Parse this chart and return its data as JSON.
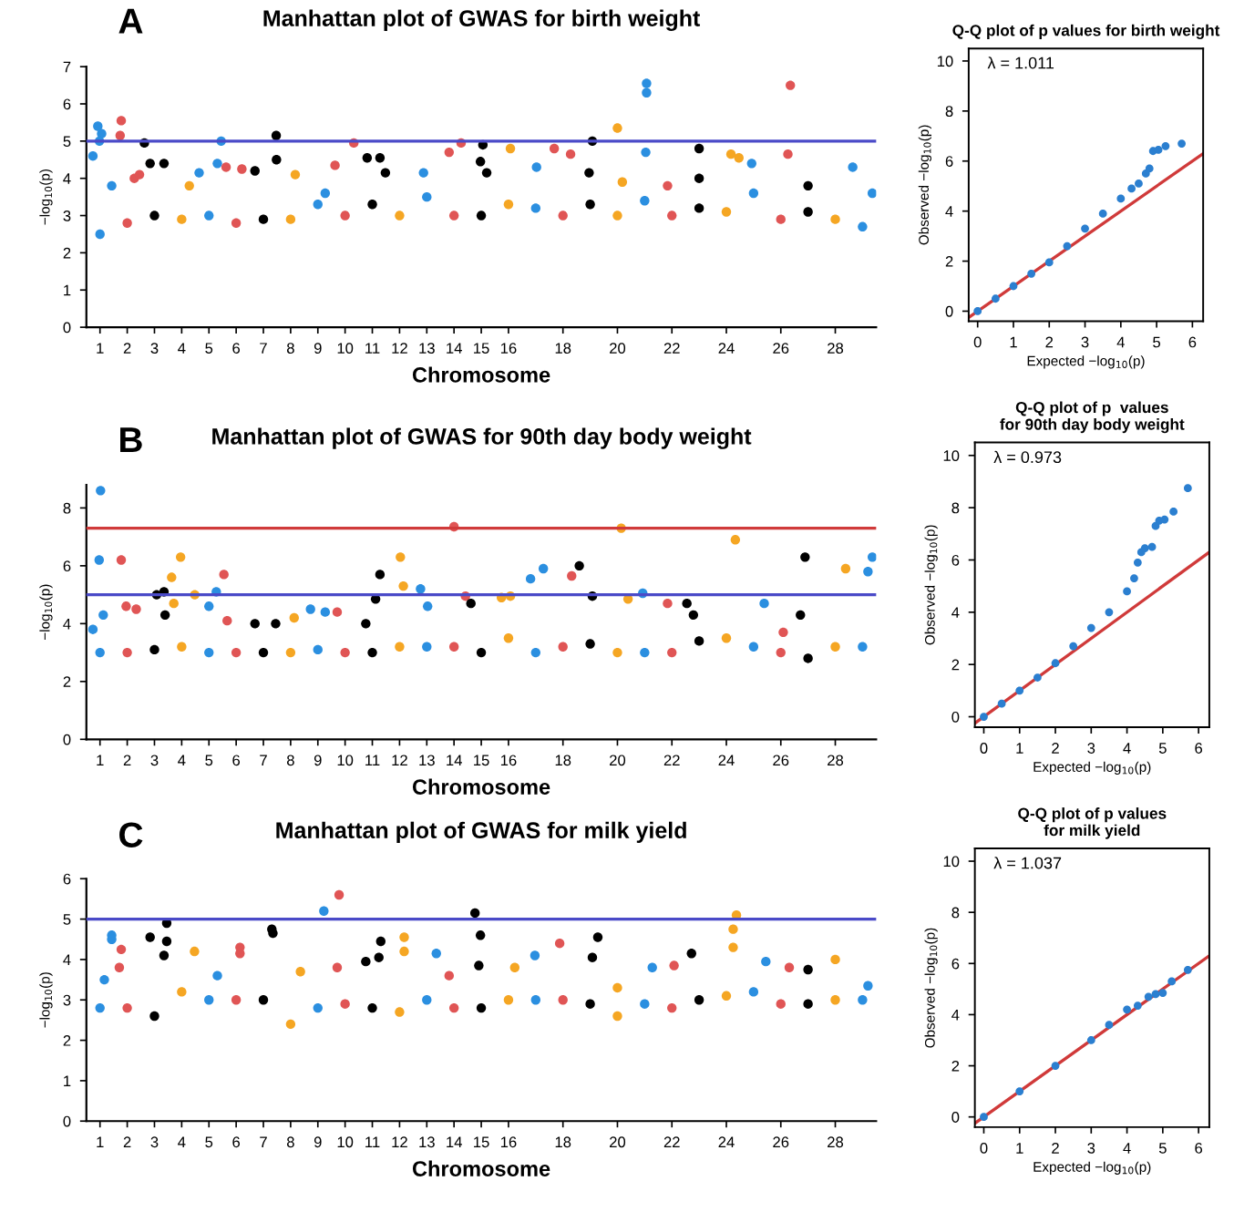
{
  "chart_data": [
    {
      "type": "scatter",
      "title": "Manhattan plot of GWAS for birth weight",
      "xlabel": "Chromosome",
      "ylabel": "−log$_{10}$(p)",
      "annotations": [
        "A"
      ],
      "xlim": [
        0.5,
        29.5
      ],
      "ylim": [
        0,
        7
      ],
      "yticks": [
        0,
        1,
        2,
        3,
        4,
        5,
        6,
        7
      ],
      "xticks": [
        1,
        2,
        3,
        4,
        5,
        6,
        7,
        8,
        9,
        10,
        11,
        12,
        13,
        14,
        15,
        16,
        18,
        20,
        22,
        24,
        26,
        28
      ],
      "marker": "circle",
      "grid": false,
      "ref_lines": [
        {
          "axis": "y",
          "value": 5,
          "color": "#4a4ac8"
        }
      ],
      "series": [
        {
          "color": "#2b8fe0",
          "x": [
            1.0,
            0.74,
            0.92,
            1.06,
            0.98,
            1.43,
            5.0,
            4.64,
            5.31,
            5.45,
            9.0,
            9.27,
            13.0,
            12.88,
            17.0,
            17.03,
            21.0,
            21.07,
            21.07,
            21.04,
            25.0,
            24.93,
            29.0,
            28.64,
            29.36
          ],
          "values": [
            2.5,
            4.6,
            5.4,
            5.2,
            5.0,
            3.8,
            3.0,
            4.15,
            4.4,
            5.0,
            3.3,
            3.6,
            3.5,
            4.15,
            3.2,
            4.3,
            3.4,
            6.55,
            6.3,
            4.7,
            3.6,
            4.4,
            2.7,
            4.3,
            3.6
          ]
        },
        {
          "color": "#e05555",
          "x": [
            2.0,
            1.74,
            1.78,
            2.26,
            2.45,
            6.0,
            6.21,
            5.63,
            10.0,
            10.32,
            9.63,
            14.0,
            14.26,
            13.82,
            18.0,
            17.68,
            18.28,
            22.0,
            21.84,
            26.0,
            26.35,
            26.26
          ],
          "values": [
            2.8,
            5.15,
            5.55,
            4.0,
            4.1,
            2.8,
            4.25,
            4.3,
            3.0,
            4.95,
            4.35,
            3.0,
            4.95,
            4.7,
            3.0,
            4.8,
            4.65,
            3.0,
            3.8,
            2.9,
            6.5,
            4.65
          ]
        },
        {
          "color": "#000000",
          "x": [
            3.0,
            2.63,
            2.84,
            3.35,
            7.0,
            7.47,
            7.48,
            6.69,
            11.0,
            10.81,
            11.28,
            11.48,
            15.0,
            15.06,
            14.97,
            15.2,
            19.0,
            19.08,
            18.96,
            23.0,
            23.0,
            23.0,
            27.0,
            27.0
          ],
          "values": [
            3.0,
            4.95,
            4.4,
            4.4,
            2.9,
            5.15,
            4.5,
            4.2,
            3.3,
            4.55,
            4.55,
            4.15,
            3.0,
            4.9,
            4.45,
            4.15,
            3.3,
            5.0,
            4.15,
            3.2,
            4.8,
            4.0,
            3.1,
            3.8
          ]
        },
        {
          "color": "#f5a623",
          "x": [
            4.0,
            4.28,
            8.0,
            8.17,
            12.0,
            16.0,
            16.07,
            20.0,
            20.0,
            20.18,
            24.0,
            24.17,
            24.46,
            28.0
          ],
          "values": [
            2.9,
            3.8,
            2.9,
            4.1,
            3.0,
            3.3,
            4.8,
            3.0,
            5.35,
            3.9,
            3.1,
            4.65,
            4.55,
            2.9
          ]
        }
      ]
    },
    {
      "type": "scatter",
      "title": "Q-Q plot of p values for birth weight",
      "xlabel": "Expected −log$_{10}$(p)",
      "ylabel": "Observed −log$_{10}$(p)",
      "annotations": [
        "λ = 1.011"
      ],
      "xlim": [
        -0.25,
        6.3
      ],
      "ylim": [
        -0.4,
        10.5
      ],
      "xticks": [
        0,
        1,
        2,
        3,
        4,
        5,
        6
      ],
      "yticks": [
        0,
        2,
        4,
        6,
        8,
        10
      ],
      "marker": "circle",
      "grid": false,
      "series": [
        {
          "color": "#2b7fd0",
          "x": [
            0,
            0.5,
            1,
            1.5,
            2,
            2.5,
            3,
            3.5,
            4,
            4.3,
            4.5,
            4.7,
            4.8,
            4.9,
            5.05,
            5.25,
            5.7
          ],
          "values": [
            0,
            0.5,
            1,
            1.5,
            1.95,
            2.6,
            3.3,
            3.9,
            4.5,
            4.9,
            5.1,
            5.5,
            5.7,
            6.4,
            6.45,
            6.6,
            6.7
          ]
        },
        {
          "type": "line",
          "color": "#d03a3a",
          "marker": "none",
          "x": [
            -0.25,
            6.3
          ],
          "values": [
            -0.25,
            6.3
          ]
        }
      ]
    },
    {
      "type": "scatter",
      "title": "Manhattan plot of GWAS for 90th day body weight",
      "xlabel": "Chromosome",
      "ylabel": "−log$_{10}$(p)",
      "annotations": [
        "B"
      ],
      "xlim": [
        0.5,
        29.5
      ],
      "ylim": [
        0,
        8.8
      ],
      "yticks": [
        0,
        2,
        4,
        6,
        8
      ],
      "xticks": [
        1,
        2,
        3,
        4,
        5,
        6,
        7,
        8,
        9,
        10,
        11,
        12,
        13,
        14,
        15,
        16,
        18,
        20,
        22,
        24,
        26,
        28
      ],
      "marker": "circle",
      "grid": false,
      "ref_lines": [
        {
          "axis": "y",
          "value": 7.3,
          "color": "#d03a3a"
        },
        {
          "axis": "y",
          "value": 5,
          "color": "#4a4ac8"
        }
      ],
      "series": [
        {
          "color": "#2b8fe0",
          "x": [
            1.0,
            1.02,
            0.97,
            1.12,
            0.74,
            5.0,
            5.27,
            5.0,
            9.0,
            8.73,
            9.27,
            13.0,
            12.77,
            13.03,
            17.0,
            16.81,
            17.28,
            21.0,
            20.93,
            25.0,
            25.39,
            29.0,
            29.36,
            29.2
          ],
          "values": [
            3.0,
            8.6,
            6.2,
            4.3,
            3.8,
            3.0,
            5.1,
            4.6,
            3.1,
            4.5,
            4.4,
            3.2,
            5.2,
            4.6,
            3.0,
            5.55,
            5.9,
            3.0,
            5.05,
            3.2,
            4.7,
            3.2,
            6.3,
            5.8
          ]
        },
        {
          "color": "#e05555",
          "x": [
            2.0,
            1.78,
            1.96,
            2.33,
            6.0,
            5.55,
            5.67,
            10.0,
            9.71,
            14.0,
            14.0,
            14.42,
            18.0,
            18.32,
            22.0,
            21.84,
            26.0,
            26.09
          ],
          "values": [
            3.0,
            6.2,
            4.6,
            4.5,
            3.0,
            5.7,
            4.1,
            3.0,
            4.4,
            3.2,
            7.35,
            4.95,
            3.2,
            5.65,
            3.0,
            4.7,
            3.0,
            3.7
          ]
        },
        {
          "color": "#000000",
          "x": [
            3.0,
            3.08,
            3.35,
            3.39,
            7.0,
            6.69,
            7.45,
            11.0,
            11.28,
            11.12,
            10.76,
            15.0,
            14.62,
            19.0,
            18.6,
            19.08,
            23.0,
            22.55,
            22.79,
            27.0,
            26.89,
            26.72
          ],
          "values": [
            3.1,
            5.0,
            5.1,
            4.3,
            3.0,
            4.0,
            4.0,
            3.0,
            5.7,
            4.85,
            4.0,
            3.0,
            4.7,
            3.3,
            6.0,
            4.95,
            3.4,
            4.7,
            4.3,
            2.8,
            6.3,
            4.3
          ]
        },
        {
          "color": "#f5a623",
          "x": [
            4.0,
            3.96,
            3.63,
            3.71,
            4.48,
            8.0,
            8.13,
            12.0,
            12.03,
            12.14,
            16.0,
            16.07,
            15.74,
            20.0,
            20.14,
            20.39,
            24.0,
            24.33,
            28.0,
            28.38
          ],
          "values": [
            3.2,
            6.3,
            5.6,
            4.7,
            5.0,
            3.0,
            4.2,
            3.2,
            6.3,
            5.3,
            3.5,
            4.95,
            4.9,
            3.0,
            7.3,
            4.85,
            3.5,
            6.9,
            3.2,
            5.9
          ]
        }
      ]
    },
    {
      "type": "scatter",
      "title": "Q-Q plot of p  values\nfor 90th day body weight",
      "xlabel": "Expected −log$_{10}$(p)",
      "ylabel": "Observed −log$_{10}$(p)",
      "annotations": [
        "λ = 0.973"
      ],
      "xlim": [
        -0.25,
        6.3
      ],
      "ylim": [
        -0.4,
        10.5
      ],
      "xticks": [
        0,
        1,
        2,
        3,
        4,
        5,
        6
      ],
      "yticks": [
        0,
        2,
        4,
        6,
        8,
        10
      ],
      "marker": "circle",
      "grid": false,
      "series": [
        {
          "color": "#2b7fd0",
          "x": [
            0,
            0.5,
            1,
            1.5,
            2,
            2.5,
            3,
            3.5,
            4,
            4.2,
            4.3,
            4.4,
            4.5,
            4.7,
            4.8,
            4.9,
            5.05,
            5.3,
            5.7
          ],
          "values": [
            0,
            0.5,
            1,
            1.5,
            2.05,
            2.7,
            3.4,
            4.0,
            4.8,
            5.3,
            5.9,
            6.3,
            6.45,
            6.5,
            7.3,
            7.5,
            7.55,
            7.85,
            8.75
          ]
        },
        {
          "type": "line",
          "color": "#d03a3a",
          "marker": "none",
          "x": [
            -0.25,
            6.3
          ],
          "values": [
            -0.25,
            6.3
          ]
        }
      ]
    },
    {
      "type": "scatter",
      "title": "Manhattan plot of GWAS for milk yield",
      "xlabel": "Chromosome",
      "ylabel": "−log$_{10}$(p)",
      "annotations": [
        "C"
      ],
      "xlim": [
        0.5,
        29.5
      ],
      "ylim": [
        0,
        6
      ],
      "yticks": [
        0,
        1,
        2,
        3,
        4,
        5,
        6
      ],
      "xticks": [
        1,
        2,
        3,
        4,
        5,
        6,
        7,
        8,
        9,
        10,
        11,
        12,
        13,
        14,
        15,
        16,
        18,
        20,
        22,
        24,
        26,
        28
      ],
      "marker": "circle",
      "grid": false,
      "ref_lines": [
        {
          "axis": "y",
          "value": 5,
          "color": "#4a4ac8"
        }
      ],
      "series": [
        {
          "color": "#2b8fe0",
          "x": [
            1.0,
            1.16,
            1.43,
            1.43,
            5.0,
            5.31,
            9.0,
            9.22,
            13.0,
            13.35,
            17.0,
            16.97,
            21.0,
            21.28,
            25.0,
            25.45,
            29.0,
            29.2
          ],
          "values": [
            2.8,
            3.5,
            4.6,
            4.5,
            3.0,
            3.6,
            2.8,
            5.2,
            3.0,
            4.15,
            3.0,
            4.1,
            2.9,
            3.8,
            3.2,
            3.95,
            3.0,
            3.35
          ]
        },
        {
          "color": "#e05555",
          "x": [
            2.0,
            1.78,
            1.71,
            6.0,
            6.14,
            6.14,
            10.0,
            9.78,
            9.71,
            14.0,
            13.82,
            18.0,
            17.88,
            22.0,
            22.08,
            26.0,
            26.31
          ],
          "values": [
            2.8,
            4.25,
            3.8,
            3.0,
            4.3,
            4.15,
            2.9,
            5.6,
            3.8,
            2.8,
            3.6,
            3.0,
            4.4,
            2.8,
            3.85,
            2.9,
            3.8
          ]
        },
        {
          "color": "#000000",
          "x": [
            3.0,
            2.84,
            3.45,
            3.45,
            3.35,
            7.0,
            7.31,
            7.35,
            11.0,
            11.31,
            11.24,
            10.76,
            15.0,
            14.77,
            14.97,
            14.91,
            19.0,
            19.28,
            19.08,
            23.0,
            22.72,
            27.0,
            27.0
          ],
          "values": [
            2.6,
            4.55,
            4.9,
            4.45,
            4.1,
            3.0,
            4.75,
            4.65,
            2.8,
            4.45,
            4.05,
            3.95,
            2.8,
            5.15,
            4.6,
            3.85,
            2.9,
            4.55,
            4.05,
            3.0,
            4.15,
            2.9,
            3.75
          ]
        },
        {
          "color": "#f5a623",
          "x": [
            4.0,
            4.47,
            8.0,
            8.36,
            12.0,
            12.17,
            12.17,
            16.0,
            16.23,
            20.0,
            20.0,
            24.0,
            24.37,
            24.25,
            24.25,
            28.0,
            28.0
          ],
          "values": [
            3.2,
            4.2,
            2.4,
            3.7,
            2.7,
            4.55,
            4.2,
            3.0,
            3.8,
            2.6,
            3.3,
            3.1,
            5.1,
            4.75,
            4.3,
            3.0,
            4.0
          ]
        }
      ]
    },
    {
      "type": "scatter",
      "title": "Q-Q plot of p values\nfor milk yield",
      "xlabel": "Expected −log$_{10}$(p)",
      "ylabel": "Observed −log$_{10}$(p)",
      "annotations": [
        "λ = 1.037"
      ],
      "xlim": [
        -0.25,
        6.3
      ],
      "ylim": [
        -0.4,
        10.5
      ],
      "xticks": [
        0,
        1,
        2,
        3,
        4,
        5,
        6
      ],
      "yticks": [
        0,
        2,
        4,
        6,
        8,
        10
      ],
      "marker": "circle",
      "grid": false,
      "series": [
        {
          "color": "#2b7fd0",
          "x": [
            0,
            1,
            2,
            3,
            3.5,
            4,
            4.3,
            4.6,
            4.8,
            5.0,
            5.25,
            5.7
          ],
          "values": [
            0,
            1,
            2,
            3,
            3.6,
            4.2,
            4.35,
            4.7,
            4.8,
            4.85,
            5.3,
            5.75
          ]
        },
        {
          "type": "line",
          "color": "#d03a3a",
          "marker": "none",
          "x": [
            -0.25,
            6.3
          ],
          "values": [
            -0.25,
            6.3
          ]
        }
      ]
    }
  ]
}
